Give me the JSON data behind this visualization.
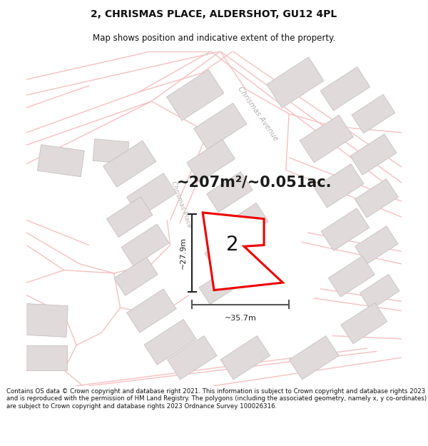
{
  "title_line1": "2, CHRISMAS PLACE, ALDERSHOT, GU12 4PL",
  "title_line2": "Map shows position and indicative extent of the property.",
  "footer_text": "Contains OS data © Crown copyright and database right 2021. This information is subject to Crown copyright and database rights 2023 and is reproduced with the permission of HM Land Registry. The polygons (including the associated geometry, namely x, y co-ordinates) are subject to Crown copyright and database rights 2023 Ordnance Survey 100026316.",
  "area_text": "~207m²/~0.051ac.",
  "width_label": "~35.7m",
  "height_label": "~27.9m",
  "property_number": "2",
  "bg_color": "#ffffff",
  "map_bg": "#ffffff",
  "road_color": "#f5c0c0",
  "building_color": "#e0dada",
  "building_edge": "#c8c0c0",
  "property_fill": "#ffffff",
  "property_edge": "#ee0000",
  "street_label_color": "#b8b0b0",
  "dim_color": "#222222",
  "title_fontsize": 10,
  "subtitle_fontsize": 8.5,
  "footer_fontsize": 6.2
}
